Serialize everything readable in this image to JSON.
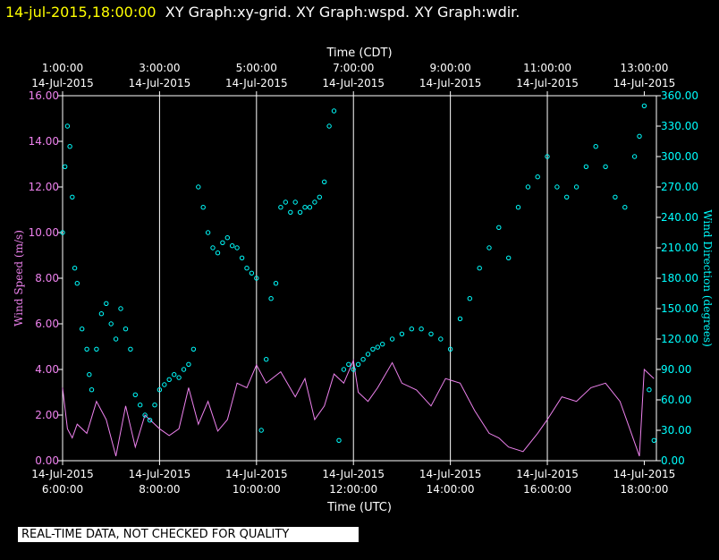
{
  "header": {
    "timestamp": "14-jul-2015,18:00:00",
    "graph_names": "XY Graph:xy-grid.  XY Graph:wspd.  XY Graph:wdir."
  },
  "footer": {
    "qc_notice": "REAL-TIME DATA, NOT CHECKED FOR QUALITY"
  },
  "chart_data": {
    "type": "line",
    "title": "",
    "x_top_label": "Time (CDT)",
    "x_bottom_label": "Time (UTC)",
    "x_top_ticks": [
      {
        "time": "1:00:00",
        "date": "14-Jul-2015"
      },
      {
        "time": "3:00:00",
        "date": "14-Jul-2015"
      },
      {
        "time": "5:00:00",
        "date": "14-Jul-2015"
      },
      {
        "time": "7:00:00",
        "date": "14-Jul-2015"
      },
      {
        "time": "9:00:00",
        "date": "14-Jul-2015"
      },
      {
        "time": "11:00:00",
        "date": "14-Jul-2015"
      },
      {
        "time": "13:00:00",
        "date": "14-Jul-2015"
      }
    ],
    "x_bottom_ticks": [
      {
        "date": "14-Jul-2015",
        "time": "6:00:00"
      },
      {
        "date": "14-Jul-2015",
        "time": "8:00:00"
      },
      {
        "date": "14-Jul-2015",
        "time": "10:00:00"
      },
      {
        "date": "14-Jul-2015",
        "time": "12:00:00"
      },
      {
        "date": "14-Jul-2015",
        "time": "14:00:00"
      },
      {
        "date": "14-Jul-2015",
        "time": "16:00:00"
      },
      {
        "date": "14-Jul-2015",
        "time": "18:00:00"
      }
    ],
    "x_unit": "hour UTC",
    "xlim": [
      6,
      18.25
    ],
    "grid_hours": [
      8,
      10,
      12,
      14,
      16
    ],
    "y_left": {
      "label": "Wind Speed (m/s)",
      "lim": [
        0,
        16
      ],
      "ticks": [
        "0.00",
        "2.00",
        "4.00",
        "6.00",
        "8.00",
        "10.00",
        "12.00",
        "14.00",
        "16.00"
      ],
      "color": "#ee82ee"
    },
    "y_right": {
      "label": "Wind Direction (degrees)",
      "lim": [
        0,
        360
      ],
      "ticks": [
        "0.00",
        "30.00",
        "60.00",
        "90.00",
        "120.00",
        "150.00",
        "180.00",
        "210.00",
        "240.00",
        "270.00",
        "300.00",
        "330.00",
        "360.00"
      ],
      "color": "#00ffff"
    },
    "series": [
      {
        "key": "wspd",
        "style": "line",
        "axis": "left",
        "color": "#ee82ee",
        "x": [
          6.0,
          6.1,
          6.2,
          6.3,
          6.5,
          6.7,
          6.9,
          7.1,
          7.3,
          7.5,
          7.7,
          7.9,
          8.0,
          8.2,
          8.4,
          8.6,
          8.8,
          9.0,
          9.2,
          9.4,
          9.6,
          9.8,
          10.0,
          10.2,
          10.5,
          10.8,
          11.0,
          11.2,
          11.4,
          11.6,
          11.8,
          12.0,
          12.1,
          12.3,
          12.5,
          12.8,
          13.0,
          13.3,
          13.6,
          13.9,
          14.2,
          14.5,
          14.8,
          15.0,
          15.2,
          15.5,
          15.8,
          16.0,
          16.3,
          16.6,
          16.9,
          17.2,
          17.5,
          17.7,
          17.9,
          18.0,
          18.2
        ],
        "y": [
          3.2,
          1.4,
          1.0,
          1.6,
          1.2,
          2.6,
          1.8,
          0.2,
          2.4,
          0.6,
          2.0,
          1.6,
          1.4,
          1.1,
          1.4,
          3.2,
          1.6,
          2.6,
          1.3,
          1.8,
          3.4,
          3.2,
          4.2,
          3.4,
          3.9,
          2.8,
          3.6,
          1.8,
          2.4,
          3.8,
          3.4,
          4.4,
          3.0,
          2.6,
          3.2,
          4.3,
          3.4,
          3.1,
          2.4,
          3.6,
          3.4,
          2.2,
          1.2,
          1.0,
          0.6,
          0.4,
          1.2,
          1.8,
          2.8,
          2.6,
          3.2,
          3.4,
          2.6,
          1.4,
          0.2,
          4.0,
          3.6
        ]
      },
      {
        "key": "wdir",
        "style": "points",
        "axis": "right",
        "color": "#00ffff",
        "x": [
          6.0,
          6.05,
          6.1,
          6.15,
          6.2,
          6.25,
          6.3,
          6.4,
          6.5,
          6.55,
          6.6,
          6.7,
          6.8,
          6.9,
          7.0,
          7.1,
          7.2,
          7.3,
          7.4,
          7.5,
          7.6,
          7.7,
          7.8,
          7.9,
          8.0,
          8.1,
          8.2,
          8.3,
          8.4,
          8.5,
          8.6,
          8.7,
          8.8,
          8.9,
          9.0,
          9.1,
          9.2,
          9.3,
          9.4,
          9.5,
          9.6,
          9.7,
          9.8,
          9.9,
          10.0,
          10.1,
          10.2,
          10.3,
          10.4,
          10.5,
          10.6,
          10.7,
          10.8,
          10.9,
          11.0,
          11.1,
          11.2,
          11.3,
          11.4,
          11.5,
          11.6,
          11.7,
          11.8,
          11.9,
          12.0,
          12.1,
          12.2,
          12.3,
          12.4,
          12.5,
          12.6,
          12.8,
          13.0,
          13.2,
          13.4,
          13.6,
          13.8,
          14.0,
          14.2,
          14.4,
          14.6,
          14.8,
          15.0,
          15.2,
          15.4,
          15.6,
          15.8,
          16.0,
          16.2,
          16.4,
          16.6,
          16.8,
          17.0,
          17.2,
          17.4,
          17.6,
          17.8,
          17.9,
          18.0,
          18.1,
          18.2
        ],
        "y": [
          225,
          290,
          330,
          310,
          260,
          190,
          175,
          130,
          110,
          85,
          70,
          110,
          145,
          155,
          135,
          120,
          150,
          130,
          110,
          65,
          55,
          45,
          40,
          55,
          70,
          75,
          80,
          85,
          82,
          90,
          95,
          110,
          270,
          250,
          225,
          210,
          205,
          215,
          220,
          212,
          210,
          200,
          190,
          185,
          180,
          30,
          100,
          160,
          175,
          250,
          255,
          245,
          255,
          245,
          250,
          250,
          255,
          260,
          275,
          330,
          345,
          20,
          90,
          95,
          90,
          95,
          100,
          105,
          110,
          112,
          115,
          120,
          125,
          130,
          130,
          125,
          120,
          110,
          140,
          160,
          190,
          210,
          230,
          200,
          250,
          270,
          280,
          300,
          270,
          260,
          270,
          290,
          310,
          290,
          260,
          250,
          300,
          320,
          350,
          70,
          20
        ]
      }
    ]
  }
}
